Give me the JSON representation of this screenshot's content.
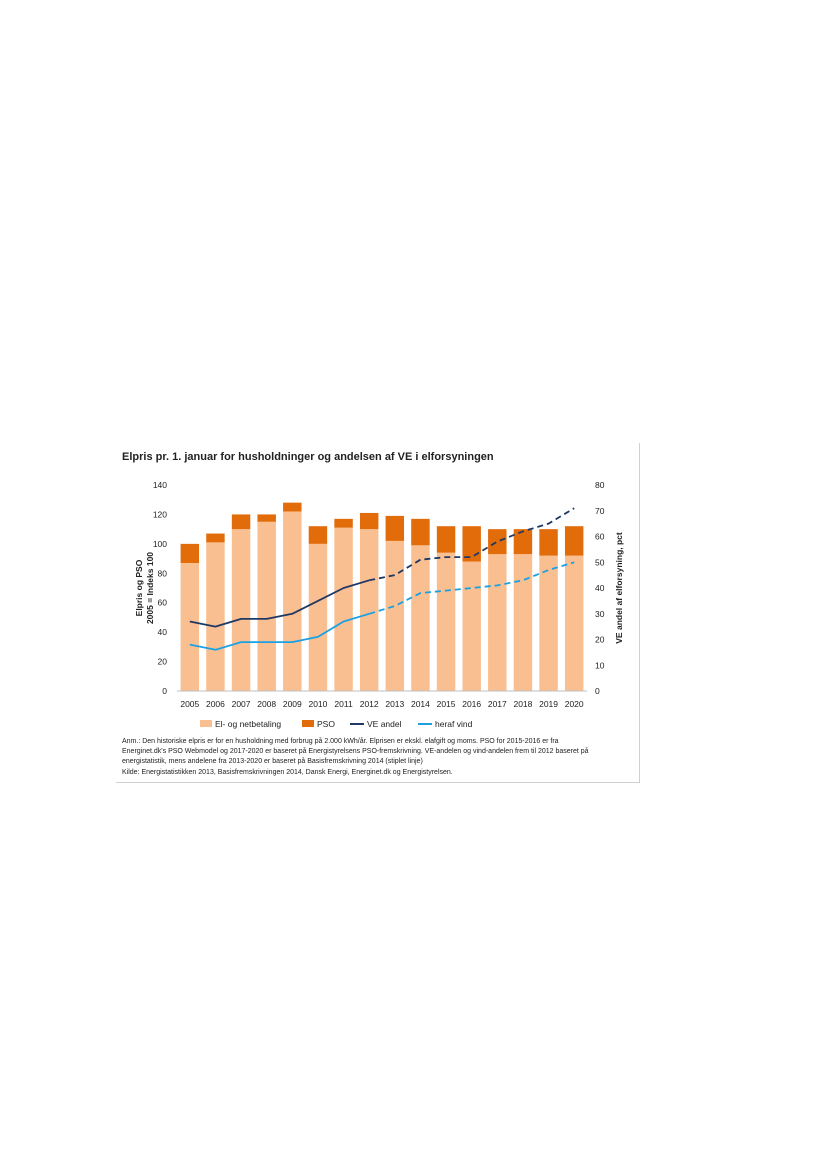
{
  "chart_data": {
    "type": "bar",
    "title": "Elpris pr. 1. januar for husholdninger og andelsen af VE i elforsyningen",
    "categories": [
      "2005",
      "2006",
      "2007",
      "2008",
      "2009",
      "2010",
      "2011",
      "2012",
      "2013",
      "2014",
      "2015",
      "2016",
      "2017",
      "2018",
      "2019",
      "2020"
    ],
    "bar_series": [
      {
        "name": "El- og netbetaling",
        "color": "#f9bf91",
        "values": [
          87,
          101,
          110,
          115,
          122,
          100,
          111,
          110,
          102,
          99,
          94,
          88,
          93,
          93,
          92,
          92
        ]
      },
      {
        "name": "PSO",
        "color": "#e36c0a",
        "values": [
          13,
          6,
          10,
          5,
          6,
          12,
          6,
          11,
          17,
          18,
          18,
          24,
          17,
          17,
          18,
          20
        ]
      }
    ],
    "line_series": [
      {
        "name": "VE andel",
        "color": "#1f3864",
        "values": [
          27,
          25,
          28,
          28,
          30,
          35,
          40,
          43,
          45,
          51,
          52,
          52,
          58,
          62,
          65,
          71
        ],
        "solid_until": "2012"
      },
      {
        "name": "heraf vind",
        "color": "#1ba1e2",
        "values": [
          18,
          16,
          19,
          19,
          19,
          21,
          27,
          30,
          33,
          38,
          39,
          40,
          41,
          43,
          47,
          50
        ],
        "solid_until": "2012"
      }
    ],
    "y_left": {
      "label_line1": "Elpris og PSO",
      "label_line2": "2005 = Indeks 100",
      "min": 0,
      "max": 140,
      "ticks": [
        "0",
        "20",
        "40",
        "60",
        "80",
        "100",
        "120",
        "140"
      ]
    },
    "y_right": {
      "label": "VE andel af elforsyning, pct",
      "min": 0,
      "max": 80,
      "ticks": [
        "0",
        "10",
        "20",
        "30",
        "40",
        "50",
        "60",
        "70",
        "80"
      ]
    },
    "legend": {
      "position": "bottom",
      "items": [
        "El- og netbetaling",
        "PSO",
        "VE andel",
        "heraf vind"
      ]
    },
    "grid": false
  },
  "notes": {
    "line1": "Anm.: Den historiske elpris  er for en husholdning med forbrug på 2.000 kWh/år. Elprisen er ekskl. elafgift og moms. PSO for 2015-2016 er fra",
    "line2": "Energinet.dk's PSO Webmodel og 2017-2020 er baseret på Energistyrelsens PSO-fremskrivning. VE-andelen og vind-andelen frem til 2012 baseret på",
    "line3": "energistatistik, mens andelene fra 2013-2020 er baseret på Basisfremskrivning 2014 (stiplet linje)",
    "line4": "Kilde: Energistatistikken 2013, Basisfremskrivningen 2014, Dansk Energi, Energinet.dk og Energistyrelsen."
  }
}
